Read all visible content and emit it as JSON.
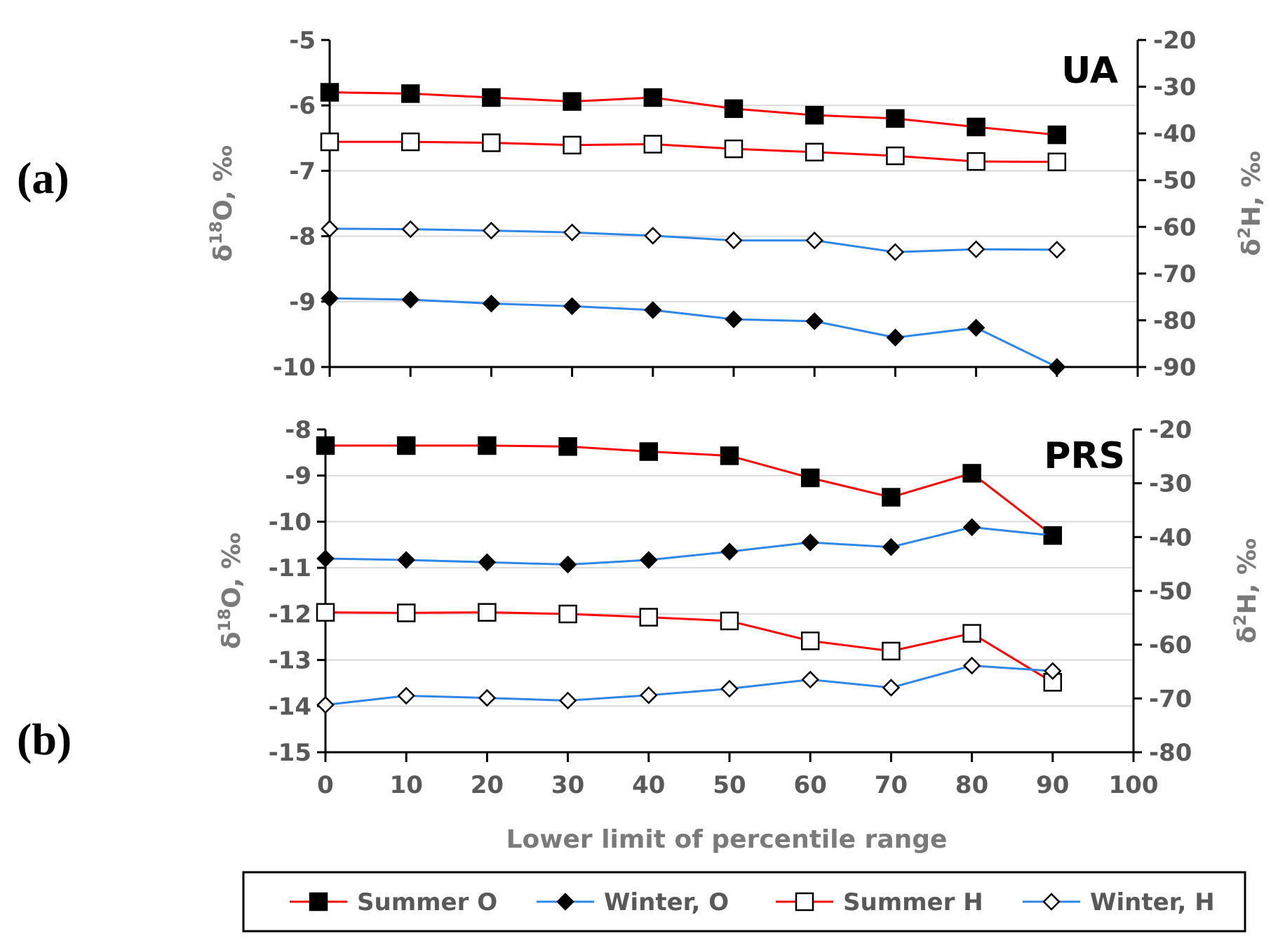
{
  "figure": {
    "panel_a_label": "(a)",
    "panel_b_label": "(b)",
    "xlabel": "Lower limit of percentile range"
  },
  "legend": [
    {
      "name": "Summer O",
      "color": "#ff0000",
      "marker": "square-filled"
    },
    {
      "name": "Winter, O",
      "color": "#2e86e6",
      "marker": "diamond-filled"
    },
    {
      "name": "Summer H",
      "color": "#ff0000",
      "marker": "square-open"
    },
    {
      "name": "Winter, H",
      "color": "#2e86e6",
      "marker": "diamond-open"
    }
  ],
  "chart_data": [
    {
      "type": "line",
      "title": "UA",
      "xlabel": "Lower limit of percentile range",
      "ylabel_left": "δ18O, ‰",
      "ylabel_right": "δ2H, ‰",
      "x": [
        0,
        10,
        20,
        30,
        40,
        50,
        60,
        70,
        80,
        90
      ],
      "xlim": [
        0,
        100
      ],
      "xticks": [
        "0",
        "10",
        "20",
        "30",
        "40",
        "50",
        "60",
        "70",
        "80",
        "90",
        "100"
      ],
      "ylim_left": [
        -10,
        -5
      ],
      "yticks_left": [
        "-5",
        "-6",
        "-7",
        "-8",
        "-9",
        "-10"
      ],
      "ylim_right": [
        -90,
        -20
      ],
      "yticks_right": [
        "-20",
        "-30",
        "-40",
        "-50",
        "-60",
        "-70",
        "-80",
        "-90"
      ],
      "series": [
        {
          "name": "Summer O",
          "axis": "left",
          "values": [
            -5.8,
            -5.82,
            -5.88,
            -5.94,
            -5.88,
            -6.05,
            -6.15,
            -6.2,
            -6.33,
            -6.45
          ]
        },
        {
          "name": "Winter, O",
          "axis": "left",
          "values": [
            -8.95,
            -8.97,
            -9.03,
            -9.07,
            -9.13,
            -9.27,
            -9.3,
            -9.55,
            -9.4,
            -10.0
          ]
        },
        {
          "name": "Summer H",
          "axis": "right",
          "values": [
            -41.8,
            -41.8,
            -42.0,
            -42.5,
            -42.3,
            -43.3,
            -44.0,
            -44.8,
            -46.0,
            -46.1
          ]
        },
        {
          "name": "Winter, H",
          "axis": "right",
          "values": [
            -60.4,
            -60.5,
            -60.8,
            -61.2,
            -61.9,
            -62.9,
            -62.9,
            -65.4,
            -64.8,
            -64.9
          ]
        }
      ]
    },
    {
      "type": "line",
      "title": "PRS",
      "xlabel": "Lower limit of percentile range",
      "ylabel_left": "δ18O, ‰",
      "ylabel_right": "δ2H, ‰",
      "x": [
        0,
        10,
        20,
        30,
        40,
        50,
        60,
        70,
        80,
        90
      ],
      "xlim": [
        0,
        100
      ],
      "xticks": [
        "0",
        "10",
        "20",
        "30",
        "40",
        "50",
        "60",
        "70",
        "80",
        "90",
        "100"
      ],
      "ylim_left": [
        -15,
        -8
      ],
      "yticks_left": [
        "-8",
        "-9",
        "-10",
        "-11",
        "-12",
        "-13",
        "-14",
        "-15"
      ],
      "ylim_right": [
        -80,
        -20
      ],
      "yticks_right": [
        "-20",
        "-30",
        "-40",
        "-50",
        "-60",
        "-70",
        "-80"
      ],
      "series": [
        {
          "name": "Summer O",
          "axis": "left",
          "values": [
            -8.35,
            -8.35,
            -8.35,
            -8.37,
            -8.48,
            -8.57,
            -9.05,
            -9.47,
            -8.95,
            -10.3
          ]
        },
        {
          "name": "Winter, O",
          "axis": "left",
          "values": [
            -10.8,
            -10.83,
            -10.88,
            -10.93,
            -10.83,
            -10.65,
            -10.45,
            -10.55,
            -10.12,
            -10.3
          ]
        },
        {
          "name": "Summer H",
          "axis": "right",
          "values": [
            -54.0,
            -54.1,
            -54.0,
            -54.3,
            -54.9,
            -55.6,
            -59.3,
            -61.2,
            -57.9,
            -67.0
          ]
        },
        {
          "name": "Winter, H",
          "axis": "right",
          "values": [
            -71.2,
            -69.5,
            -69.9,
            -70.4,
            -69.4,
            -68.2,
            -66.5,
            -68.0,
            -63.9,
            -64.9
          ]
        }
      ]
    }
  ]
}
